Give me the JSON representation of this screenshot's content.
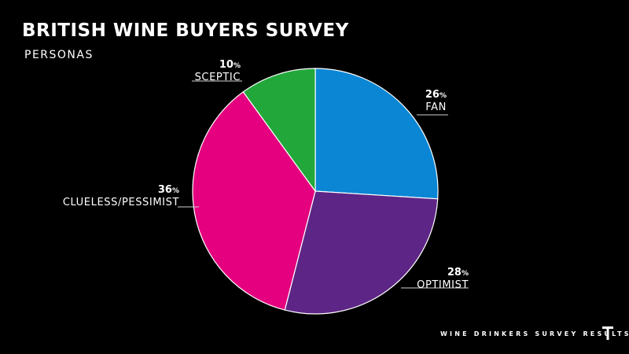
{
  "header": {
    "title": "BRITISH WINE BUYERS SURVEY",
    "subtitle": "PERSONAS"
  },
  "footer": {
    "text": "WINE DRINKERS SURVEY RESULTS",
    "logo_icon": "t-logo-icon"
  },
  "chart_data": {
    "type": "pie",
    "start_angle_deg": 0,
    "direction": "clockwise",
    "slices": [
      {
        "label": "FAN",
        "value": 26,
        "value_label": "26",
        "unit": "%",
        "color": "#0a86d4"
      },
      {
        "label": "OPTIMIST",
        "value": 28,
        "value_label": "28",
        "unit": "%",
        "color": "#5d2585"
      },
      {
        "label": "CLUELESS/PESSIMIST",
        "value": 36,
        "value_label": "36",
        "unit": "%",
        "color": "#e4007e"
      },
      {
        "label": "SCEPTIC",
        "value": 10,
        "value_label": "10",
        "unit": "%",
        "color": "#22a83a"
      }
    ]
  }
}
